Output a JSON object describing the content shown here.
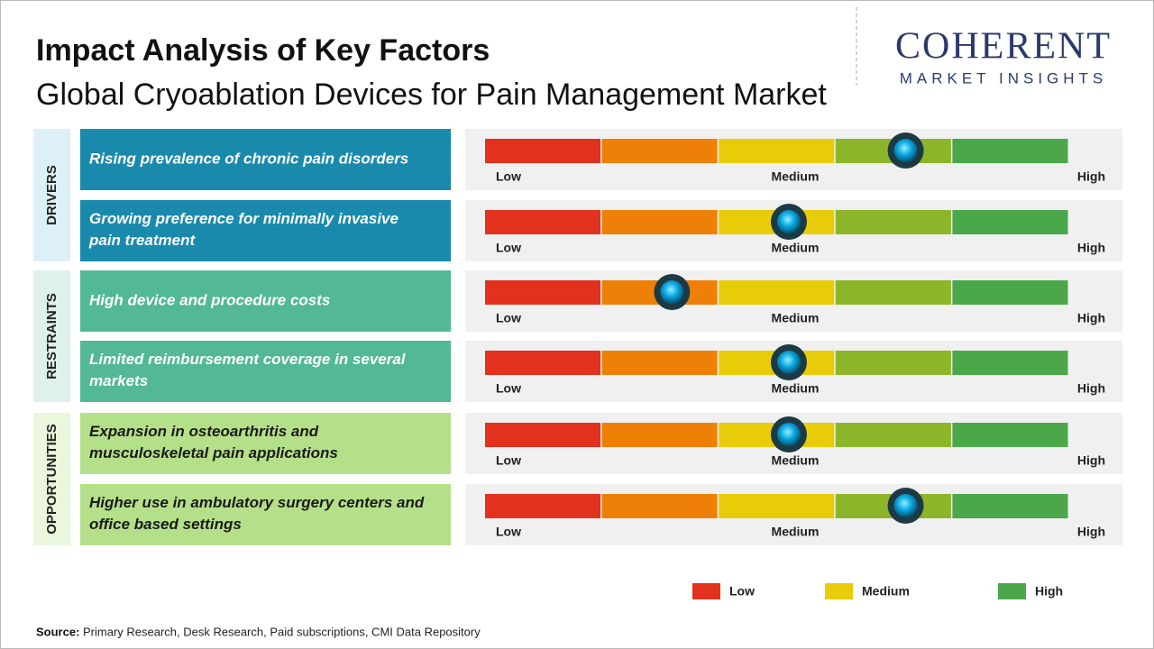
{
  "header": {
    "title": "Impact Analysis of Key Factors",
    "subtitle": "Global Cryoablation Devices for Pain Management Market"
  },
  "logo": {
    "name": "COHERENT",
    "tagline": "MARKET INSIGHTS"
  },
  "scale_colors": [
    "#e2311d",
    "#ee8008",
    "#e8cc0a",
    "#8db52a",
    "#4aa84a"
  ],
  "scale_labels": [
    "Low",
    "Medium",
    "High"
  ],
  "groups": [
    {
      "label": "DRIVERS",
      "color": "#1a8aac",
      "side_color": "#ddf0f7",
      "text_color": "#ffffff",
      "factors": [
        {
          "text": "Rising prevalence of chronic pain disorders",
          "impact": 3.6
        },
        {
          "text": "Growing preference for minimally invasive pain treatment",
          "impact": 2.6
        }
      ]
    },
    {
      "label": "RESTRAINTS",
      "color": "#52b896",
      "side_color": "#def2ea",
      "text_color": "#ffffff",
      "factors": [
        {
          "text": "High device and procedure costs",
          "impact": 1.6
        },
        {
          "text": "Limited reimbursement coverage in several markets",
          "impact": 2.6
        }
      ]
    },
    {
      "label": "OPPORTUNITIES",
      "color": "#b5e08a",
      "side_color": "#eaf7dc",
      "text_color": "#1a1a1a",
      "factors": [
        {
          "text": "Expansion in osteoarthritis and musculoskeletal pain applications",
          "impact": 2.6
        },
        {
          "text": "Higher use in ambulatory surgery centers and office based settings",
          "impact": 3.6
        }
      ]
    }
  ],
  "legend": [
    {
      "label": "Low",
      "color": "#e2311d"
    },
    {
      "label": "Medium",
      "color": "#e8cc0a"
    },
    {
      "label": "High",
      "color": "#4aa84a"
    }
  ],
  "source": {
    "label": "Source:",
    "text": "Primary Research, Desk Research, Paid subscriptions, CMI Data Repository"
  }
}
